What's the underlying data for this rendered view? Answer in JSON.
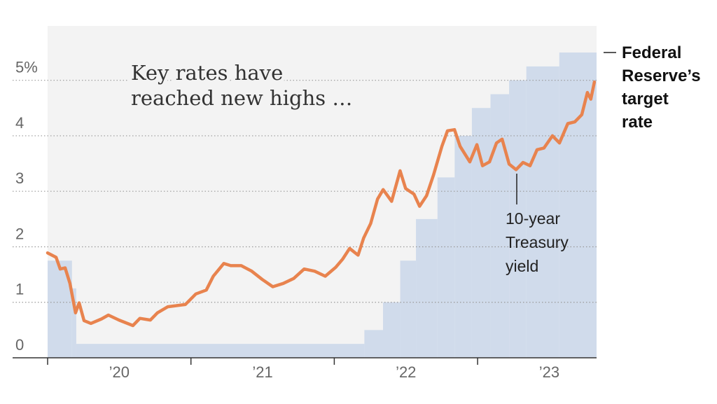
{
  "chart_data": {
    "type": "line",
    "title": [
      "Key rates have",
      "reached new highs …"
    ],
    "xlim": [
      2020,
      2023.83
    ],
    "xticks": [
      {
        "value": 2020,
        "label": "’20"
      },
      {
        "value": 2021,
        "label": "’21"
      },
      {
        "value": 2022,
        "label": "’22"
      },
      {
        "value": 2023,
        "label": "’23"
      }
    ],
    "ylim": [
      0,
      5.98
    ],
    "yticks": [
      0,
      1,
      2,
      3,
      4,
      {
        "value": 5,
        "label": "5%"
      }
    ],
    "grid": true,
    "series": [
      {
        "name": "Federal Reserve’s target rate",
        "type": "step-area",
        "color": "#d0dbeb",
        "x": [
          2020,
          2020.17,
          2020.2,
          2022.21,
          2022.34,
          2022.46,
          2022.57,
          2022.72,
          2022.84,
          2022.96,
          2023.09,
          2023.22,
          2023.34,
          2023.57
        ],
        "values": [
          1.75,
          1.25,
          0.25,
          0.5,
          1,
          1.75,
          2.5,
          3.25,
          4,
          4.5,
          4.75,
          5,
          5.25,
          5.5
        ]
      },
      {
        "name": "10-year Treasury yield",
        "type": "line",
        "color": "#e8834e",
        "x": [
          2020.0,
          2020.059,
          2020.088,
          2020.122,
          2020.156,
          2020.195,
          2020.22,
          2020.254,
          2020.302,
          2020.376,
          2020.424,
          2020.498,
          2020.595,
          2020.644,
          2020.717,
          2020.766,
          2020.839,
          2020.961,
          2021.034,
          2021.107,
          2021.156,
          2021.229,
          2021.278,
          2021.351,
          2021.424,
          2021.498,
          2021.571,
          2021.644,
          2021.717,
          2021.79,
          2021.863,
          2021.937,
          2022.01,
          2022.059,
          2022.107,
          2022.166,
          2022.205,
          2022.254,
          2022.302,
          2022.341,
          2022.4,
          2022.459,
          2022.498,
          2022.556,
          2022.595,
          2022.644,
          2022.693,
          2022.751,
          2022.79,
          2022.839,
          2022.878,
          2022.946,
          2022.995,
          2023.034,
          2023.083,
          2023.132,
          2023.171,
          2023.22,
          2023.268,
          2023.317,
          2023.366,
          2023.415,
          2023.463,
          2023.522,
          2023.571,
          2023.629,
          2023.678,
          2023.727,
          2023.766,
          2023.79,
          2023.815
        ],
        "values": [
          1.89,
          1.81,
          1.6,
          1.62,
          1.34,
          0.81,
          0.99,
          0.67,
          0.62,
          0.7,
          0.77,
          0.68,
          0.58,
          0.71,
          0.68,
          0.81,
          0.92,
          0.96,
          1.15,
          1.22,
          1.47,
          1.7,
          1.66,
          1.66,
          1.56,
          1.41,
          1.28,
          1.34,
          1.43,
          1.6,
          1.56,
          1.47,
          1.63,
          1.78,
          1.97,
          1.85,
          2.16,
          2.42,
          2.86,
          3.03,
          2.82,
          3.37,
          3.05,
          2.95,
          2.73,
          2.92,
          3.3,
          3.81,
          4.09,
          4.11,
          3.81,
          3.53,
          3.84,
          3.46,
          3.53,
          3.87,
          3.94,
          3.49,
          3.39,
          3.52,
          3.46,
          3.75,
          3.78,
          4.0,
          3.87,
          4.22,
          4.25,
          4.38,
          4.78,
          4.66,
          4.97
        ]
      }
    ]
  }
}
